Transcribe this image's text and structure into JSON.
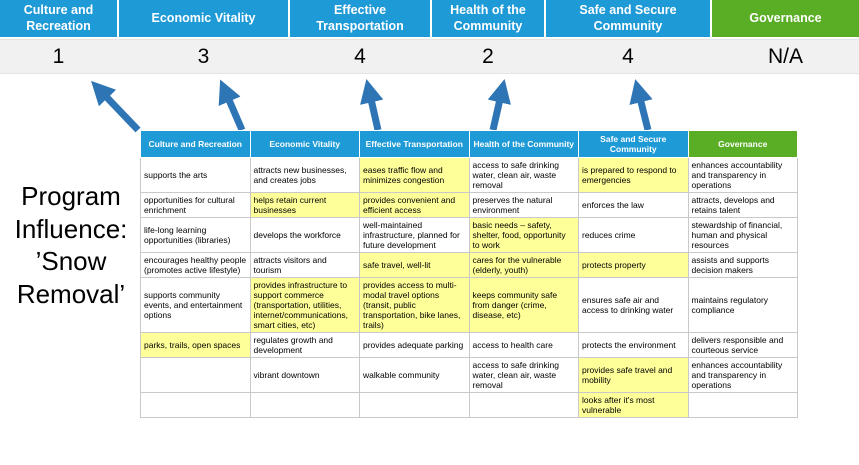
{
  "page": {
    "title": "Program Influence: ’Snow Removal’"
  },
  "colors": {
    "header_blue": "#1E9AD6",
    "header_green": "#5AAE26",
    "arrow_blue": "#2E75B6",
    "highlight_yellow": "#FFFF99",
    "score_band_gray": "#F1F1F1"
  },
  "scoreboard": {
    "columns": [
      {
        "label": "Culture and Recreation",
        "score": "1",
        "theme": "blue"
      },
      {
        "label": "Economic Vitality",
        "score": "3",
        "theme": "blue"
      },
      {
        "label": "Effective Transportation",
        "score": "4",
        "theme": "blue"
      },
      {
        "label": "Health of the Community",
        "score": "2",
        "theme": "blue"
      },
      {
        "label": "Safe and Secure Community",
        "score": "4",
        "theme": "blue"
      },
      {
        "label": "Governance",
        "score": "N/A",
        "theme": "green"
      }
    ]
  },
  "matrix": {
    "headers": [
      {
        "label": "Culture and Recreation",
        "theme": "blue"
      },
      {
        "label": "Economic Vitality",
        "theme": "blue"
      },
      {
        "label": "Effective Transportation",
        "theme": "blue"
      },
      {
        "label": "Health of the Community",
        "theme": "blue"
      },
      {
        "label": "Safe and Secure Community",
        "theme": "blue"
      },
      {
        "label": "Governance",
        "theme": "green"
      }
    ],
    "rows": [
      [
        {
          "text": "supports the arts",
          "highlight": false
        },
        {
          "text": "attracts new businesses, and creates jobs",
          "highlight": false
        },
        {
          "text": "eases traffic flow and minimizes congestion",
          "highlight": true
        },
        {
          "text": "access to safe drinking water, clean air, waste removal",
          "highlight": false
        },
        {
          "text": "is prepared to respond to emergencies",
          "highlight": true
        },
        {
          "text": "enhances accountability and transparency in operations",
          "highlight": false
        }
      ],
      [
        {
          "text": "opportunities for cultural enrichment",
          "highlight": false
        },
        {
          "text": "helps retain current businesses",
          "highlight": true
        },
        {
          "text": "provides convenient and efficient access",
          "highlight": true
        },
        {
          "text": "preserves the natural environment",
          "highlight": false
        },
        {
          "text": "enforces the law",
          "highlight": false
        },
        {
          "text": "attracts, develops and retains talent",
          "highlight": false
        }
      ],
      [
        {
          "text": "life-long learning opportunities (libraries)",
          "highlight": false
        },
        {
          "text": "develops the workforce",
          "highlight": false
        },
        {
          "text": "well-maintained infrastructure, planned for future development",
          "highlight": false
        },
        {
          "text": "basic needs – safety, shelter, food, opportunity to work",
          "highlight": true
        },
        {
          "text": "reduces crime",
          "highlight": false
        },
        {
          "text": "stewardship of financial, human and physical resources",
          "highlight": false
        }
      ],
      [
        {
          "text": "encourages healthy people (promotes active lifestyle)",
          "highlight": false
        },
        {
          "text": "attracts visitors and tourism",
          "highlight": false
        },
        {
          "text": "safe travel, well-lit",
          "highlight": true
        },
        {
          "text": "cares for the vulnerable (elderly, youth)",
          "highlight": true
        },
        {
          "text": "protects property",
          "highlight": true
        },
        {
          "text": "assists and supports decision makers",
          "highlight": false
        }
      ],
      [
        {
          "text": "supports community events, and entertainment options",
          "highlight": false
        },
        {
          "text": "provides infrastructure to support commerce (transportation, utilities, internet/communications, smart cities, etc)",
          "highlight": true
        },
        {
          "text": "provides access to multi-modal travel options (transit, public transportation, bike lanes, trails)",
          "highlight": true
        },
        {
          "text": "keeps community safe from danger (crime, disease, etc)",
          "highlight": true
        },
        {
          "text": "ensures safe air and access to drinking water",
          "highlight": false
        },
        {
          "text": "maintains regulatory compliance",
          "highlight": false
        }
      ],
      [
        {
          "text": "parks, trails, open spaces",
          "highlight": true
        },
        {
          "text": "regulates growth and development",
          "highlight": false
        },
        {
          "text": "provides adequate parking",
          "highlight": false
        },
        {
          "text": "access to health care",
          "highlight": false
        },
        {
          "text": "protects the environment",
          "highlight": false
        },
        {
          "text": "delivers responsible and courteous service",
          "highlight": false
        }
      ],
      [
        {
          "text": "",
          "highlight": false
        },
        {
          "text": "vibrant downtown",
          "highlight": false
        },
        {
          "text": "walkable community",
          "highlight": false
        },
        {
          "text": "access to safe drinking water, clean air, waste removal",
          "highlight": false
        },
        {
          "text": "provides safe travel and mobility",
          "highlight": true
        },
        {
          "text": "enhances accountability and transparency in operations",
          "highlight": false
        }
      ],
      [
        {
          "text": "",
          "highlight": false
        },
        {
          "text": "",
          "highlight": false
        },
        {
          "text": "",
          "highlight": false
        },
        {
          "text": "",
          "highlight": false
        },
        {
          "text": "looks after it's most vulnerable",
          "highlight": true
        },
        {
          "text": "",
          "highlight": false
        }
      ]
    ]
  }
}
